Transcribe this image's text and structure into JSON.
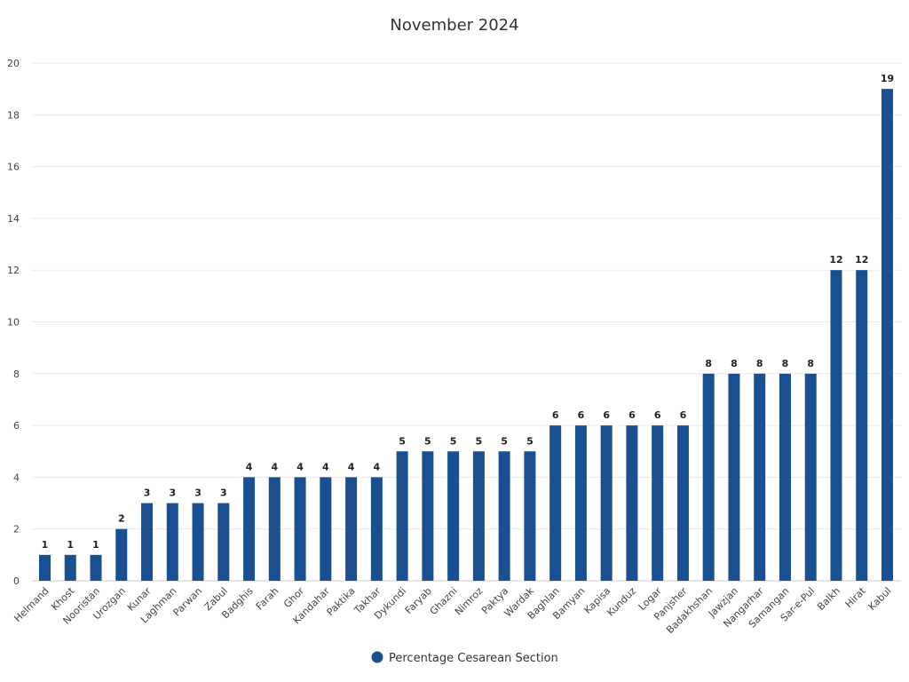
{
  "chart_data": {
    "type": "bar",
    "title": "November 2024",
    "xlabel": "",
    "ylabel": "",
    "ylim": [
      0,
      20
    ],
    "yticks": [
      0,
      2,
      4,
      6,
      8,
      10,
      12,
      14,
      16,
      18,
      20
    ],
    "grid": true,
    "legend_position": "bottom",
    "categories": [
      "Helmand",
      "Khost",
      "Nooristan",
      "Urozgan",
      "Kunar",
      "Laghman",
      "Parwan",
      "Zabul",
      "Badghis",
      "Farah",
      "Ghor",
      "Kandahar",
      "Paktika",
      "Takhar",
      "Dykundi",
      "Faryab",
      "Ghazni",
      "Nimroz",
      "Paktya",
      "Wardak",
      "Baghlan",
      "Bamyan",
      "Kapisa",
      "Kunduz",
      "Logar",
      "Panjsher",
      "Badakhshan",
      "Jawzjan",
      "Nangarhar",
      "Samangan",
      "Sar-e-Pul",
      "Balkh",
      "Hirat",
      "Kabul"
    ],
    "series": [
      {
        "name": "Percentage Cesarean Section",
        "color": "#1a5092",
        "values": [
          1,
          1,
          1,
          2,
          3,
          3,
          3,
          3,
          4,
          4,
          4,
          4,
          4,
          4,
          5,
          5,
          5,
          5,
          5,
          5,
          6,
          6,
          6,
          6,
          6,
          6,
          8,
          8,
          8,
          8,
          8,
          12,
          12,
          19
        ]
      }
    ]
  }
}
